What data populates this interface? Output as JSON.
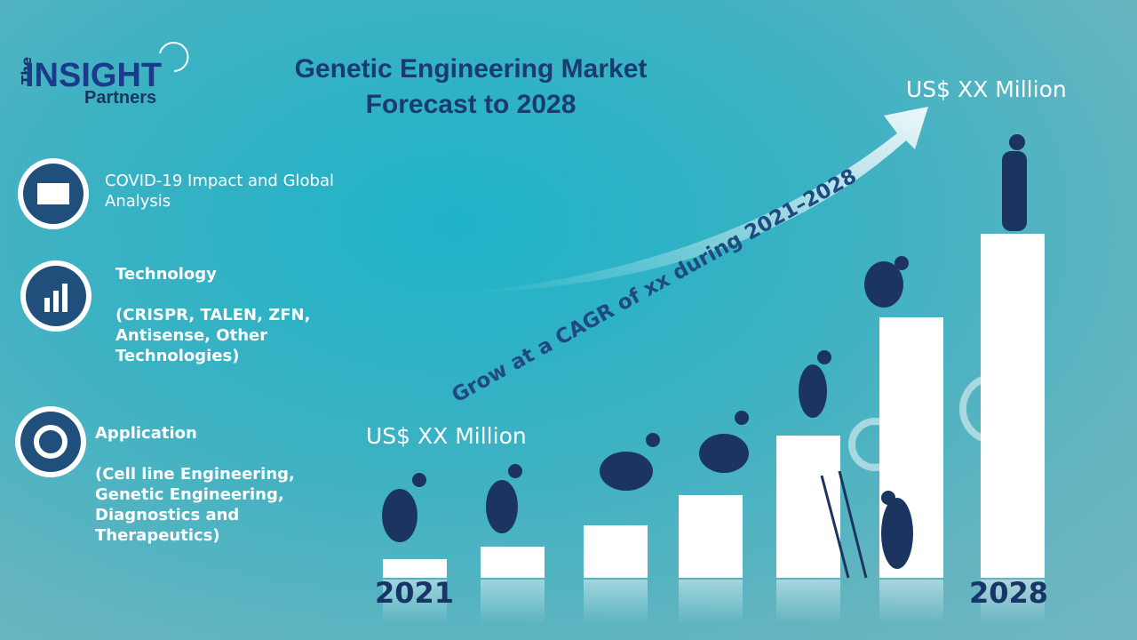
{
  "logo": {
    "the": "The",
    "insight": "INSIGHT",
    "partners": "Partners"
  },
  "title": [
    "Genetic Engineering Market",
    "Forecast to 2028"
  ],
  "start_value": "US$ XX Million",
  "end_value": "US$ XX Million",
  "growth": "Grow at a CAGR of xx during 2021–2028",
  "start_year": "2021",
  "end_year": "2028",
  "segments": [
    {
      "heading": "COVID-19 Impact and Global Analysis"
    },
    {
      "heading": "Technology",
      "detail": "(CRISPR, TALEN, ZFN, Antisense, Other Technologies)"
    },
    {
      "heading": "Application",
      "detail": "(Cell line Engineering, Genetic Engineering, Diagnostics and Therapeutics)"
    }
  ]
}
